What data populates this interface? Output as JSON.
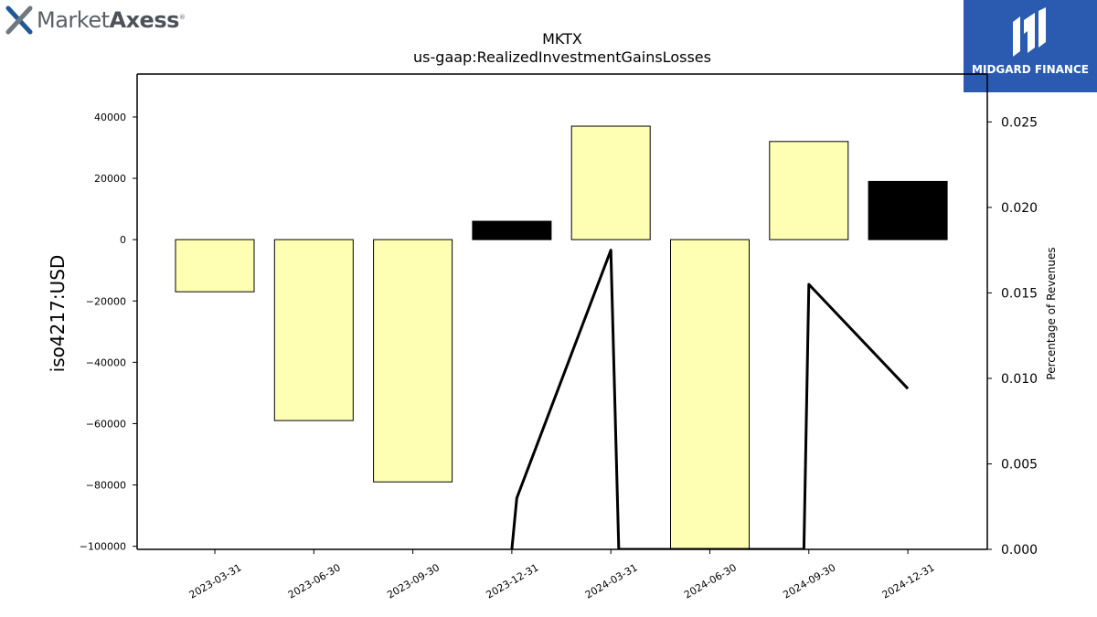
{
  "brand_left": {
    "prefix": "Market",
    "suffix": "Axess",
    "mark": "®",
    "icon": "x-logo-icon"
  },
  "brand_right": {
    "name": "MIDGARD FINANCE",
    "icon": "midgard-logo-icon",
    "color": "#2a5bb0"
  },
  "chart_data": {
    "type": "bar",
    "title": "MKTX",
    "subtitle": "us-gaap:RealizedInvestmentGainsLosses",
    "ylabel": "iso4217:USD",
    "y2label": "Percentage of Revenues",
    "categories": [
      "2023-03-31",
      "2023-06-30",
      "2023-09-30",
      "2023-12-31",
      "2024-03-31",
      "2024-06-30",
      "2024-09-30",
      "2024-12-31"
    ],
    "values": [
      -17000,
      -59000,
      -79000,
      6000,
      37000,
      -101000,
      32000,
      19000
    ],
    "bar_colors": [
      "#ffffb3",
      "#ffffb3",
      "#ffffb3",
      "#000000",
      "#ffffb3",
      "#ffffb3",
      "#ffffb3",
      "#000000"
    ],
    "ylim": [
      -101000,
      54000
    ],
    "yticks": [
      -100000,
      -80000,
      -60000,
      -40000,
      -20000,
      0,
      20000,
      40000
    ],
    "ytick_labels": [
      "−100000",
      "−80000",
      "−60000",
      "−40000",
      "−20000",
      "0",
      "20000",
      "40000"
    ],
    "line": {
      "name": "Percentage of Revenues",
      "points": [
        [
          3,
          0.0
        ],
        [
          3.05,
          0.003
        ],
        [
          4,
          0.0175
        ],
        [
          4.08,
          0.0
        ],
        [
          5.95,
          0.0
        ],
        [
          6,
          0.0155
        ],
        [
          7,
          0.0094
        ]
      ]
    },
    "y2lim": [
      0,
      0.0278
    ],
    "y2ticks": [
      0.0,
      0.005,
      0.01,
      0.015,
      0.02,
      0.025
    ],
    "y2tick_labels": [
      "0.000",
      "0.005",
      "0.010",
      "0.015",
      "0.020",
      "0.025"
    ],
    "grid": false,
    "legend": "none"
  }
}
